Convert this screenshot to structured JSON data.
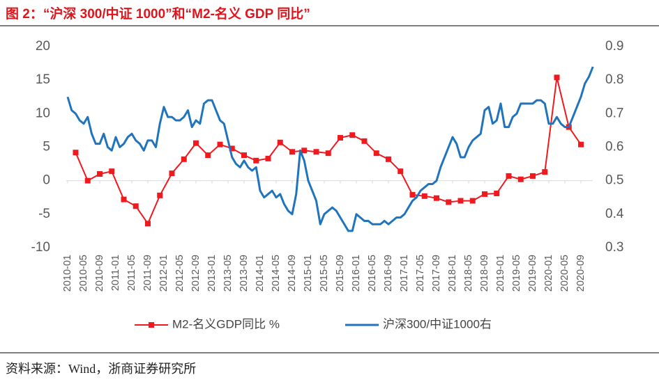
{
  "chart_data": {
    "type": "line",
    "title": "图 2：“沪深 300/中证 1000”和“M2-名义 GDP 同比”",
    "source": "资料来源：Wind，浙商证券研究所",
    "categories": [
      "2010-01",
      "2010-05",
      "2010-09",
      "2011-01",
      "2011-05",
      "2011-09",
      "2012-01",
      "2012-05",
      "2012-09",
      "2013-01",
      "2013-05",
      "2013-09",
      "2014-01",
      "2014-05",
      "2014-09",
      "2015-01",
      "2015-05",
      "2015-09",
      "2016-01",
      "2016-05",
      "2016-09",
      "2017-01",
      "2017-05",
      "2017-09",
      "2018-01",
      "2018-05",
      "2018-09",
      "2019-01",
      "2019-05",
      "2019-09",
      "2020-01",
      "2020-05",
      "2020-09"
    ],
    "ylim": [
      -10,
      20
    ],
    "yticks": [
      -10,
      -5,
      0,
      5,
      10,
      15,
      20
    ],
    "y2lim": [
      0.3,
      0.9
    ],
    "y2ticks": [
      0.3,
      0.4,
      0.5,
      0.6,
      0.7,
      0.8,
      0.9
    ],
    "legend": "bottom",
    "series": [
      {
        "name": "M2-名义GDP同比 %",
        "color": "#f0191e",
        "marker": "square",
        "x": [
          "2010-03",
          "2010-06",
          "2010-09",
          "2010-12",
          "2011-03",
          "2011-06",
          "2011-09",
          "2011-12",
          "2012-03",
          "2012-06",
          "2012-09",
          "2012-12",
          "2013-03",
          "2013-06",
          "2013-09",
          "2013-12",
          "2014-03",
          "2014-06",
          "2014-09",
          "2014-12",
          "2015-03",
          "2015-06",
          "2015-09",
          "2015-12",
          "2016-03",
          "2016-06",
          "2016-09",
          "2016-12",
          "2017-03",
          "2017-06",
          "2017-09",
          "2017-12",
          "2018-03",
          "2018-06",
          "2018-09",
          "2018-12",
          "2019-03",
          "2019-06",
          "2019-09",
          "2019-12",
          "2020-03",
          "2020-06",
          "2020-09"
        ],
        "values": [
          4.2,
          0,
          1.0,
          1.4,
          -2.8,
          -3.8,
          -6.4,
          -2.2,
          1.1,
          3.2,
          5.6,
          3.8,
          5.4,
          4.8,
          3.8,
          3.0,
          3.3,
          5.7,
          4.3,
          4.5,
          4.3,
          4.1,
          6.4,
          6.8,
          5.9,
          4.1,
          3.2,
          1.4,
          -2.1,
          -2.3,
          -2.6,
          -3.2,
          -3.0,
          -3.0,
          -2.0,
          -1.9,
          0.7,
          0.2,
          0.7,
          1.3,
          15.4,
          8.0,
          5.4
        ]
      },
      {
        "name": "沪深300/中证1000右",
        "color": "#1f74bd",
        "axis": "y2",
        "x": [
          "2010-01",
          "2010-02",
          "2010-03",
          "2010-04",
          "2010-05",
          "2010-06",
          "2010-07",
          "2010-08",
          "2010-09",
          "2010-10",
          "2010-11",
          "2010-12",
          "2011-01",
          "2011-02",
          "2011-03",
          "2011-04",
          "2011-05",
          "2011-06",
          "2011-07",
          "2011-08",
          "2011-09",
          "2011-10",
          "2011-11",
          "2011-12",
          "2012-01",
          "2012-02",
          "2012-03",
          "2012-04",
          "2012-05",
          "2012-06",
          "2012-07",
          "2012-08",
          "2012-09",
          "2012-10",
          "2012-11",
          "2012-12",
          "2013-01",
          "2013-02",
          "2013-03",
          "2013-04",
          "2013-05",
          "2013-06",
          "2013-07",
          "2013-08",
          "2013-09",
          "2013-10",
          "2013-11",
          "2013-12",
          "2014-01",
          "2014-02",
          "2014-03",
          "2014-04",
          "2014-05",
          "2014-06",
          "2014-07",
          "2014-08",
          "2014-09",
          "2014-10",
          "2014-11",
          "2014-12",
          "2015-01",
          "2015-02",
          "2015-03",
          "2015-04",
          "2015-05",
          "2015-06",
          "2015-07",
          "2015-08",
          "2015-09",
          "2015-10",
          "2015-11",
          "2015-12",
          "2016-01",
          "2016-02",
          "2016-03",
          "2016-04",
          "2016-05",
          "2016-06",
          "2016-07",
          "2016-08",
          "2016-09",
          "2016-10",
          "2016-11",
          "2016-12",
          "2017-01",
          "2017-02",
          "2017-03",
          "2017-04",
          "2017-05",
          "2017-06",
          "2017-07",
          "2017-08",
          "2017-09",
          "2017-10",
          "2017-11",
          "2017-12",
          "2018-01",
          "2018-02",
          "2018-03",
          "2018-04",
          "2018-05",
          "2018-06",
          "2018-07",
          "2018-08",
          "2018-09",
          "2018-10",
          "2018-11",
          "2018-12",
          "2019-01",
          "2019-02",
          "2019-03",
          "2019-04",
          "2019-05",
          "2019-06",
          "2019-07",
          "2019-08",
          "2019-09",
          "2019-10",
          "2019-11",
          "2019-12",
          "2020-01",
          "2020-02",
          "2020-03",
          "2020-04",
          "2020-05",
          "2020-06",
          "2020-07",
          "2020-08",
          "2020-09",
          "2020-10",
          "2020-11",
          "2020-12"
        ],
        "values": [
          0.75,
          0.71,
          0.7,
          0.68,
          0.67,
          0.69,
          0.64,
          0.61,
          0.61,
          0.64,
          0.6,
          0.59,
          0.63,
          0.6,
          0.61,
          0.63,
          0.64,
          0.62,
          0.61,
          0.59,
          0.62,
          0.62,
          0.6,
          0.67,
          0.72,
          0.69,
          0.69,
          0.68,
          0.68,
          0.69,
          0.71,
          0.66,
          0.68,
          0.67,
          0.73,
          0.74,
          0.74,
          0.71,
          0.68,
          0.67,
          0.62,
          0.57,
          0.55,
          0.54,
          0.56,
          0.54,
          0.53,
          0.54,
          0.47,
          0.45,
          0.46,
          0.47,
          0.45,
          0.46,
          0.43,
          0.41,
          0.4,
          0.46,
          0.59,
          0.56,
          0.5,
          0.47,
          0.44,
          0.37,
          0.4,
          0.41,
          0.42,
          0.41,
          0.39,
          0.37,
          0.35,
          0.35,
          0.4,
          0.39,
          0.38,
          0.38,
          0.37,
          0.37,
          0.37,
          0.38,
          0.37,
          0.38,
          0.39,
          0.39,
          0.4,
          0.42,
          0.44,
          0.45,
          0.47,
          0.48,
          0.49,
          0.49,
          0.5,
          0.54,
          0.57,
          0.6,
          0.63,
          0.61,
          0.57,
          0.57,
          0.6,
          0.62,
          0.63,
          0.64,
          0.71,
          0.72,
          0.67,
          0.68,
          0.73,
          0.66,
          0.66,
          0.69,
          0.7,
          0.73,
          0.73,
          0.73,
          0.73,
          0.74,
          0.74,
          0.73,
          0.67,
          0.67,
          0.69,
          0.67,
          0.66,
          0.66,
          0.69,
          0.72,
          0.75,
          0.79,
          0.81,
          0.84
        ]
      }
    ]
  }
}
